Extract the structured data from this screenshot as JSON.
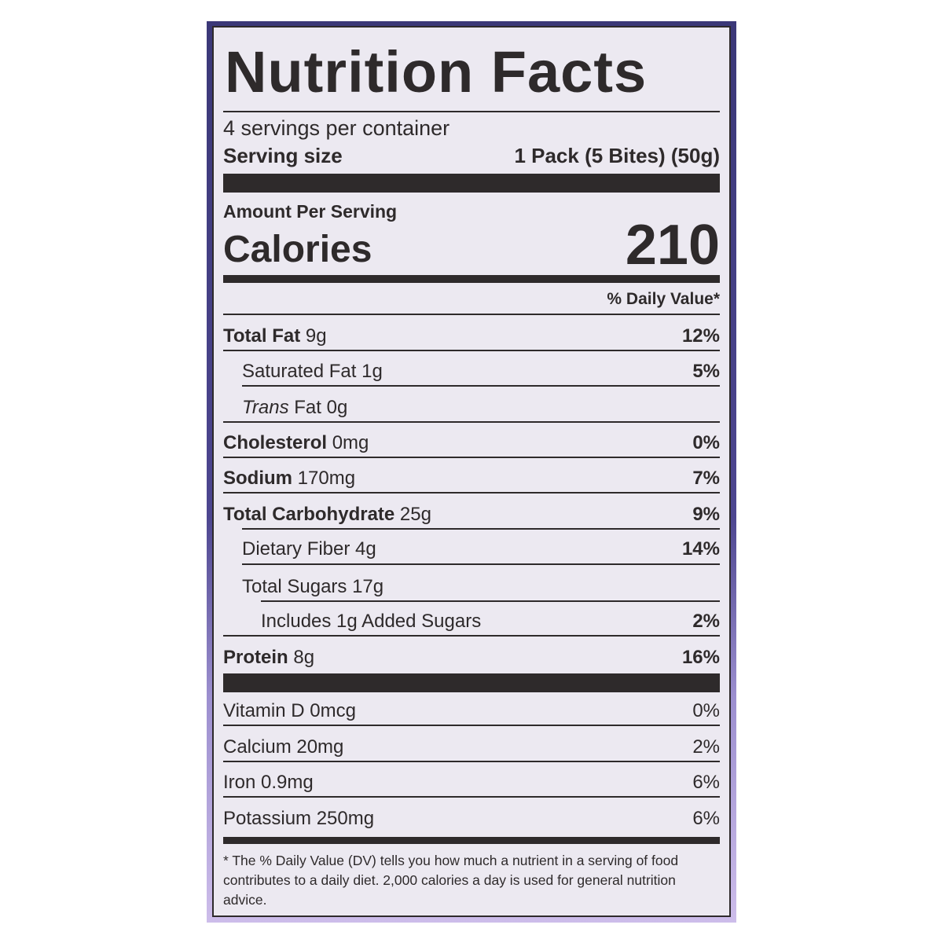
{
  "title": "Nutrition Facts",
  "servings_per_container": "4 servings per container",
  "serving_size_label": "Serving size",
  "serving_size_value": "1 Pack (5 Bites) (50g)",
  "amount_per_serving": "Amount Per Serving",
  "calories_label": "Calories",
  "calories_value": "210",
  "daily_value_header": "% Daily Value*",
  "nutrients": [
    {
      "name": "Total Fat",
      "amount": "9g",
      "dv": "12%"
    },
    {
      "name": "Saturated Fat",
      "amount": "1g",
      "dv": "5%"
    },
    {
      "name": "Trans",
      "name2": "Fat",
      "amount": "0g",
      "dv": ""
    },
    {
      "name": "Cholesterol",
      "amount": "0mg",
      "dv": "0%"
    },
    {
      "name": "Sodium",
      "amount": "170mg",
      "dv": "7%"
    },
    {
      "name": "Total Carbohydrate",
      "amount": "25g",
      "dv": "9%"
    },
    {
      "name": "Dietary Fiber",
      "amount": "4g",
      "dv": "14%"
    },
    {
      "name": "Total Sugars",
      "amount": "17g",
      "dv": ""
    },
    {
      "name": "Includes 1g Added Sugars",
      "amount": "",
      "dv": "2%"
    },
    {
      "name": "Protein",
      "amount": "8g",
      "dv": "16%"
    }
  ],
  "vitamins": [
    {
      "text": "Vitamin D 0mcg",
      "dv": "0%"
    },
    {
      "text": "Calcium 20mg",
      "dv": "2%"
    },
    {
      "text": "Iron 0.9mg",
      "dv": "6%"
    },
    {
      "text": "Potassium 250mg",
      "dv": "6%"
    }
  ],
  "footnote": "* The % Daily Value (DV) tells you how much a nutrient in a serving of food contributes to a daily diet. 2,000 calories a day is used for general nutrition advice.",
  "colors": {
    "ink": "#2e2a2b",
    "label_bg": "#ece9f1",
    "package_top": "#3b3878",
    "package_bottom": "#cdbdea"
  }
}
